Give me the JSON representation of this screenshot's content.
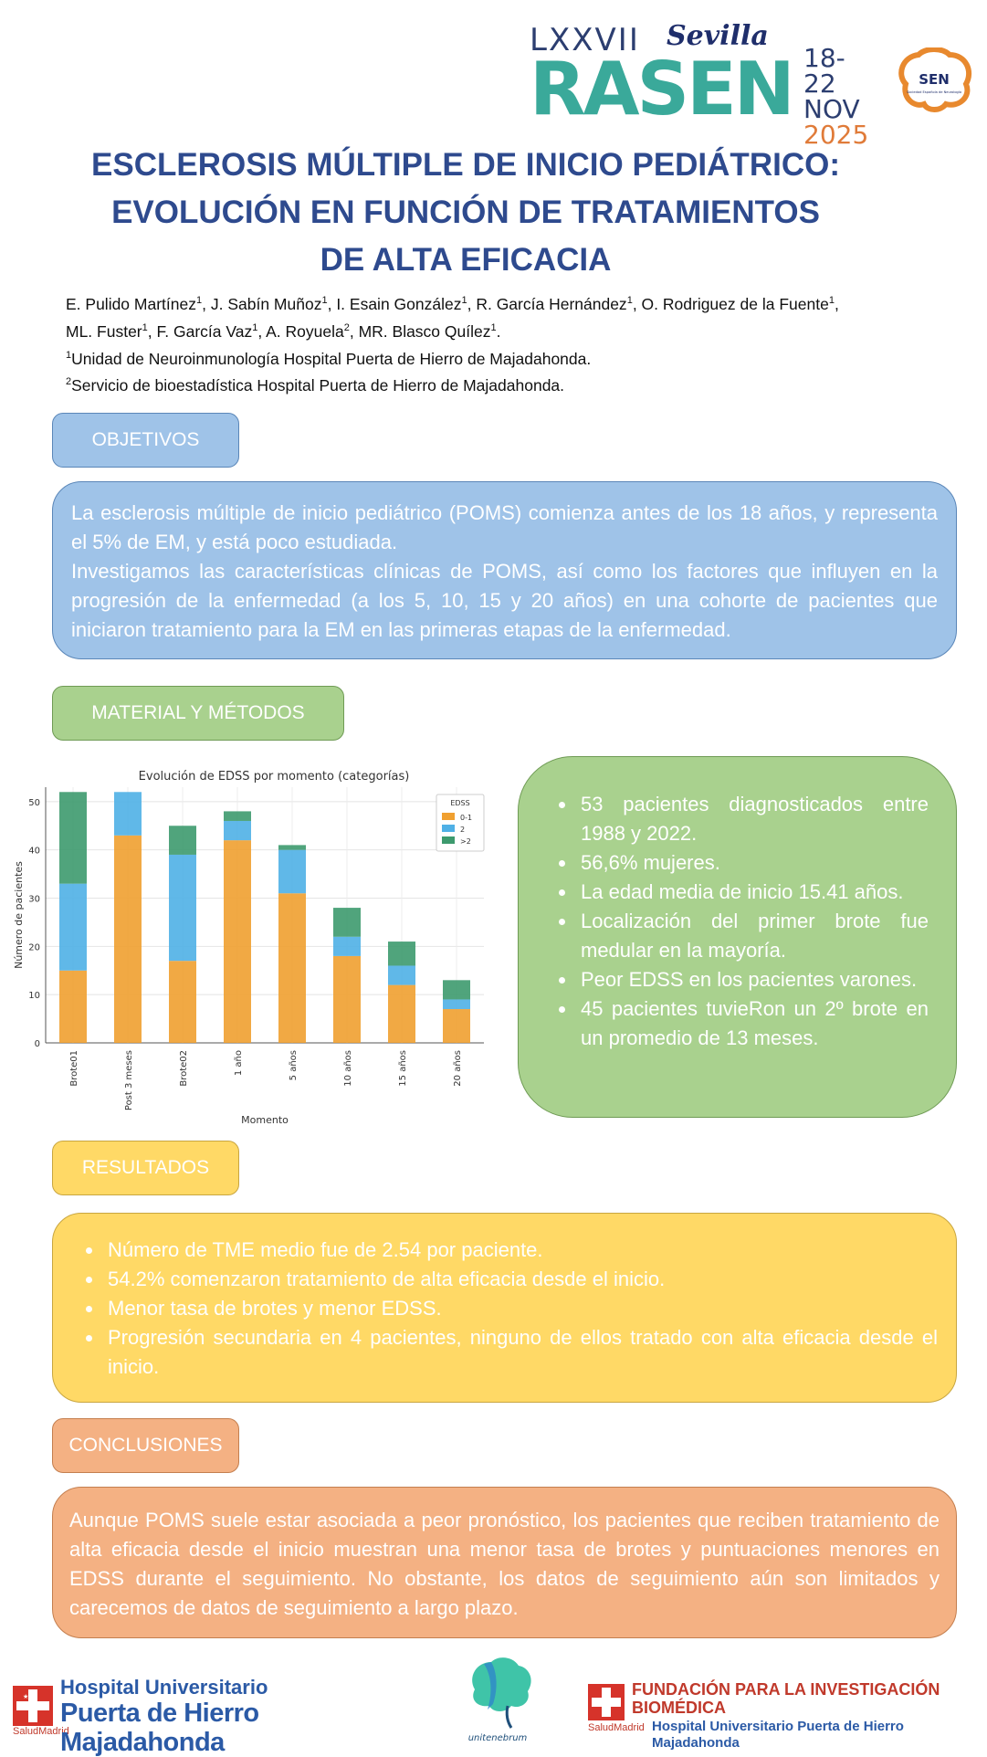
{
  "header": {
    "event_roman": "LXXVII",
    "event_city": "Sevilla",
    "event_name": "RASEN",
    "date_days": "18-22",
    "date_month": "NOV",
    "date_year": "2025",
    "society_abbr": "SEN",
    "society_name": "Sociedad Española de Neurología"
  },
  "title": {
    "line1": "ESCLEROSIS MÚLTIPLE DE INICIO PEDIÁTRICO:",
    "line2": "EVOLUCIÓN EN FUNCIÓN DE TRATAMIENTOS",
    "line3": "DE ALTA EFICACIA"
  },
  "authors": {
    "line1": [
      {
        "name": "E. Pulido Martínez",
        "sup": "1",
        "sep": ",  "
      },
      {
        "name": "J. Sabín Muñoz",
        "sup": "1",
        "sep": ", "
      },
      {
        "name": "I. Esain González",
        "sup": "1",
        "sep": ", "
      },
      {
        "name": "R. García Hernández",
        "sup": "1",
        "sep": ", "
      },
      {
        "name": "O. Rodriguez de la Fuente",
        "sup": "1",
        "sep": ","
      }
    ],
    "line2": [
      {
        "name": "ML. Fuster",
        "sup": "1",
        "sep": ", "
      },
      {
        "name": "F. García Vaz",
        "sup": "1",
        "sep": ", "
      },
      {
        "name": "A. Royuela",
        "sup": "2",
        "sep": ", "
      },
      {
        "name": "MR. Blasco Quílez",
        "sup": "1",
        "sep": "."
      }
    ],
    "affiliation1_sup": "1",
    "affiliation1": "Unidad de Neuroinmunología Hospital Puerta  de Hierro de Majadahonda.",
    "affiliation2_sup": "2",
    "affiliation2": "Servicio de bioestadística Hospital Puerta de Hierro de Majadahonda."
  },
  "objetivos": {
    "label": "OBJETIVOS",
    "paragraph1": "La esclerosis múltiple de inicio pediátrico (POMS) comienza antes de los 18 años, y representa el 5% de EM, y está poco estudiada.",
    "paragraph2": "Investigamos las características clínicas de POMS, así como los factores que influyen en la progresión de la enfermedad (a los 5, 10, 15 y 20 años) en una cohorte de pacientes que iniciaron tratamiento para la EM en las primeras etapas de la enfermedad."
  },
  "metodos": {
    "label": "MATERIAL Y MÉTODOS",
    "bullets": [
      "53 pacientes diagnosticados entre 1988 y 2022.",
      "56,6% mujeres.",
      "La edad media de inicio 15.41 años.",
      "Localización del primer brote fue medular en la mayoría.",
      "Peor EDSS en los pacientes varones.",
      "45 pacientes tuvieRon un 2º brote en un promedio de 13 meses."
    ]
  },
  "chart_data": {
    "type": "bar",
    "stacked": true,
    "title": "Evolución de EDSS por momento (categorías)",
    "xlabel": "Momento",
    "ylabel": "Número de pacientes",
    "ylim": [
      0,
      53
    ],
    "yticks": [
      0,
      10,
      20,
      30,
      40,
      50
    ],
    "grid": true,
    "legend_title": "EDSS",
    "legend_position": "top-right",
    "categories": [
      "Brote01",
      "Post 3 meses",
      "Brote02",
      "1 año",
      "5 años",
      "10 años",
      "15 años",
      "20 años"
    ],
    "series": [
      {
        "name": "0-1",
        "color": "#f0a030",
        "values": [
          15,
          43,
          17,
          42,
          31,
          18,
          12,
          7
        ]
      },
      {
        "name": "2",
        "color": "#4fb0e6",
        "values": [
          18,
          9,
          22,
          4,
          9,
          4,
          4,
          2
        ]
      },
      {
        "name": ">2",
        "color": "#3d9a6e",
        "values": [
          19,
          0,
          6,
          2,
          1,
          6,
          5,
          4
        ]
      }
    ]
  },
  "resultados": {
    "label": "RESULTADOS",
    "bullets": [
      "Número de TME medio fue de 2.54 por paciente.",
      "54.2% comenzaron tratamiento de alta eficacia desde el inicio.",
      "Menor tasa de brotes y menor EDSS.",
      "Progresión secundaria en 4 pacientes, ninguno de ellos tratado con alta eficacia desde el inicio."
    ]
  },
  "conclusiones": {
    "label": "CONCLUSIONES",
    "text": "Aunque POMS suele estar asociada a peor pronóstico, los pacientes que reciben tratamiento de alta eficacia desde el inicio muestran una menor tasa de brotes y puntuaciones menores en EDSS durante el seguimiento. No obstante, los datos de seguimiento aún son limitados y carecemos de datos de seguimiento a largo plazo."
  },
  "footer": {
    "hospital_line1": "Hospital Universitario",
    "hospital_line2": "Puerta de Hierro Majadahonda",
    "salud": "SaludMadrid",
    "mid_logo_text": "unitenebrum",
    "fund_line1": "FUNDACIÓN PARA LA INVESTIGACIÓN",
    "fund_line2": "BIOMÉDICA",
    "fund_line3": "Hospital Universitario Puerta de Hierro Majadahonda",
    "salud2": "SaludMadrid"
  },
  "colors": {
    "title": "#2e4a8e",
    "blue_box": "#9fc3e8",
    "green_box": "#a9d18e",
    "yellow_box": "#ffd966",
    "orange_box": "#f4b183"
  }
}
